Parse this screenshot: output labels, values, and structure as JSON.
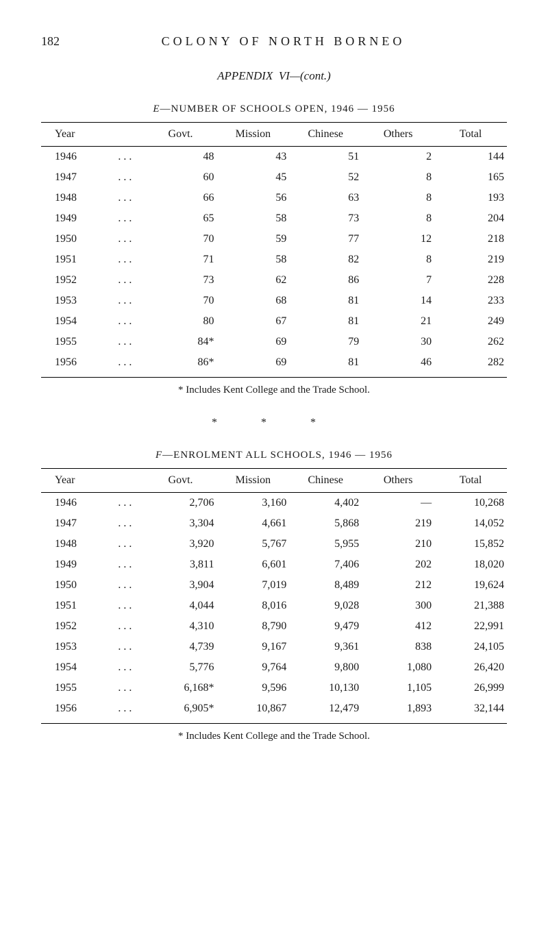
{
  "page_number": "182",
  "page_title": "COLONY OF NORTH BORNEO",
  "appendix": {
    "label": "APPENDIX",
    "number": "VI",
    "cont": "—(cont.)"
  },
  "table_e": {
    "title_prefix": "E",
    "title_main": "—NUMBER OF SCHOOLS OPEN, 1946 — 1956",
    "columns": [
      "Year",
      "Govt.",
      "Mission",
      "Chinese",
      "Others",
      "Total"
    ],
    "rows": [
      [
        "1946",
        "48",
        "43",
        "51",
        "2",
        "144"
      ],
      [
        "1947",
        "60",
        "45",
        "52",
        "8",
        "165"
      ],
      [
        "1948",
        "66",
        "56",
        "63",
        "8",
        "193"
      ],
      [
        "1949",
        "65",
        "58",
        "73",
        "8",
        "204"
      ],
      [
        "1950",
        "70",
        "59",
        "77",
        "12",
        "218"
      ],
      [
        "1951",
        "71",
        "58",
        "82",
        "8",
        "219"
      ],
      [
        "1952",
        "73",
        "62",
        "86",
        "7",
        "228"
      ],
      [
        "1953",
        "70",
        "68",
        "81",
        "14",
        "233"
      ],
      [
        "1954",
        "80",
        "67",
        "81",
        "21",
        "249"
      ],
      [
        "1955",
        "84*",
        "69",
        "79",
        "30",
        "262"
      ],
      [
        "1956",
        "86*",
        "69",
        "81",
        "46",
        "282"
      ]
    ],
    "footnote": "* Includes Kent College and the Trade School."
  },
  "stars": "* * *",
  "table_f": {
    "title_prefix": "F",
    "title_main": "—ENROLMENT ALL SCHOOLS, 1946 — 1956",
    "columns": [
      "Year",
      "Govt.",
      "Mission",
      "Chinese",
      "Others",
      "Total"
    ],
    "rows": [
      [
        "1946",
        "2,706",
        "3,160",
        "4,402",
        "—",
        "10,268"
      ],
      [
        "1947",
        "3,304",
        "4,661",
        "5,868",
        "219",
        "14,052"
      ],
      [
        "1948",
        "3,920",
        "5,767",
        "5,955",
        "210",
        "15,852"
      ],
      [
        "1949",
        "3,811",
        "6,601",
        "7,406",
        "202",
        "18,020"
      ],
      [
        "1950",
        "3,904",
        "7,019",
        "8,489",
        "212",
        "19,624"
      ],
      [
        "1951",
        "4,044",
        "8,016",
        "9,028",
        "300",
        "21,388"
      ],
      [
        "1952",
        "4,310",
        "8,790",
        "9,479",
        "412",
        "22,991"
      ],
      [
        "1953",
        "4,739",
        "9,167",
        "9,361",
        "838",
        "24,105"
      ],
      [
        "1954",
        "5,776",
        "9,764",
        "9,800",
        "1,080",
        "26,420"
      ],
      [
        "1955",
        "6,168*",
        "9,596",
        "10,130",
        "1,105",
        "26,999"
      ],
      [
        "1956",
        "6,905*",
        "10,867",
        "12,479",
        "1,893",
        "32,144"
      ]
    ],
    "footnote": "* Includes Kent College and the Trade School."
  },
  "dots": ". . ."
}
